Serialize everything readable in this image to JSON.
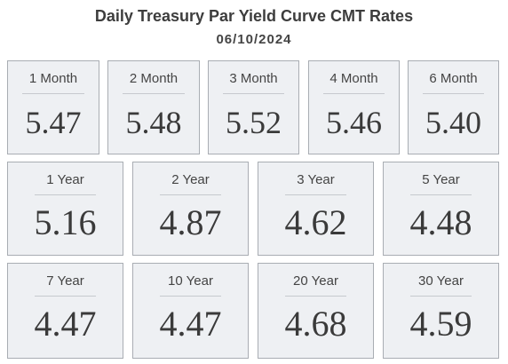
{
  "header": {
    "title": "Daily Treasury Par Yield Curve CMT Rates",
    "date": "06/10/2024"
  },
  "rates": {
    "row1": [
      {
        "label": "1 Month",
        "value": "5.47"
      },
      {
        "label": "2 Month",
        "value": "5.48"
      },
      {
        "label": "3 Month",
        "value": "5.52"
      },
      {
        "label": "4 Month",
        "value": "5.46"
      },
      {
        "label": "6 Month",
        "value": "5.40"
      }
    ],
    "row2": [
      {
        "label": "1 Year",
        "value": "5.16"
      },
      {
        "label": "2 Year",
        "value": "4.87"
      },
      {
        "label": "3 Year",
        "value": "4.62"
      },
      {
        "label": "5 Year",
        "value": "4.48"
      }
    ],
    "row3": [
      {
        "label": "7 Year",
        "value": "4.47"
      },
      {
        "label": "10 Year",
        "value": "4.47"
      },
      {
        "label": "20 Year",
        "value": "4.68"
      },
      {
        "label": "30 Year",
        "value": "4.59"
      }
    ]
  }
}
